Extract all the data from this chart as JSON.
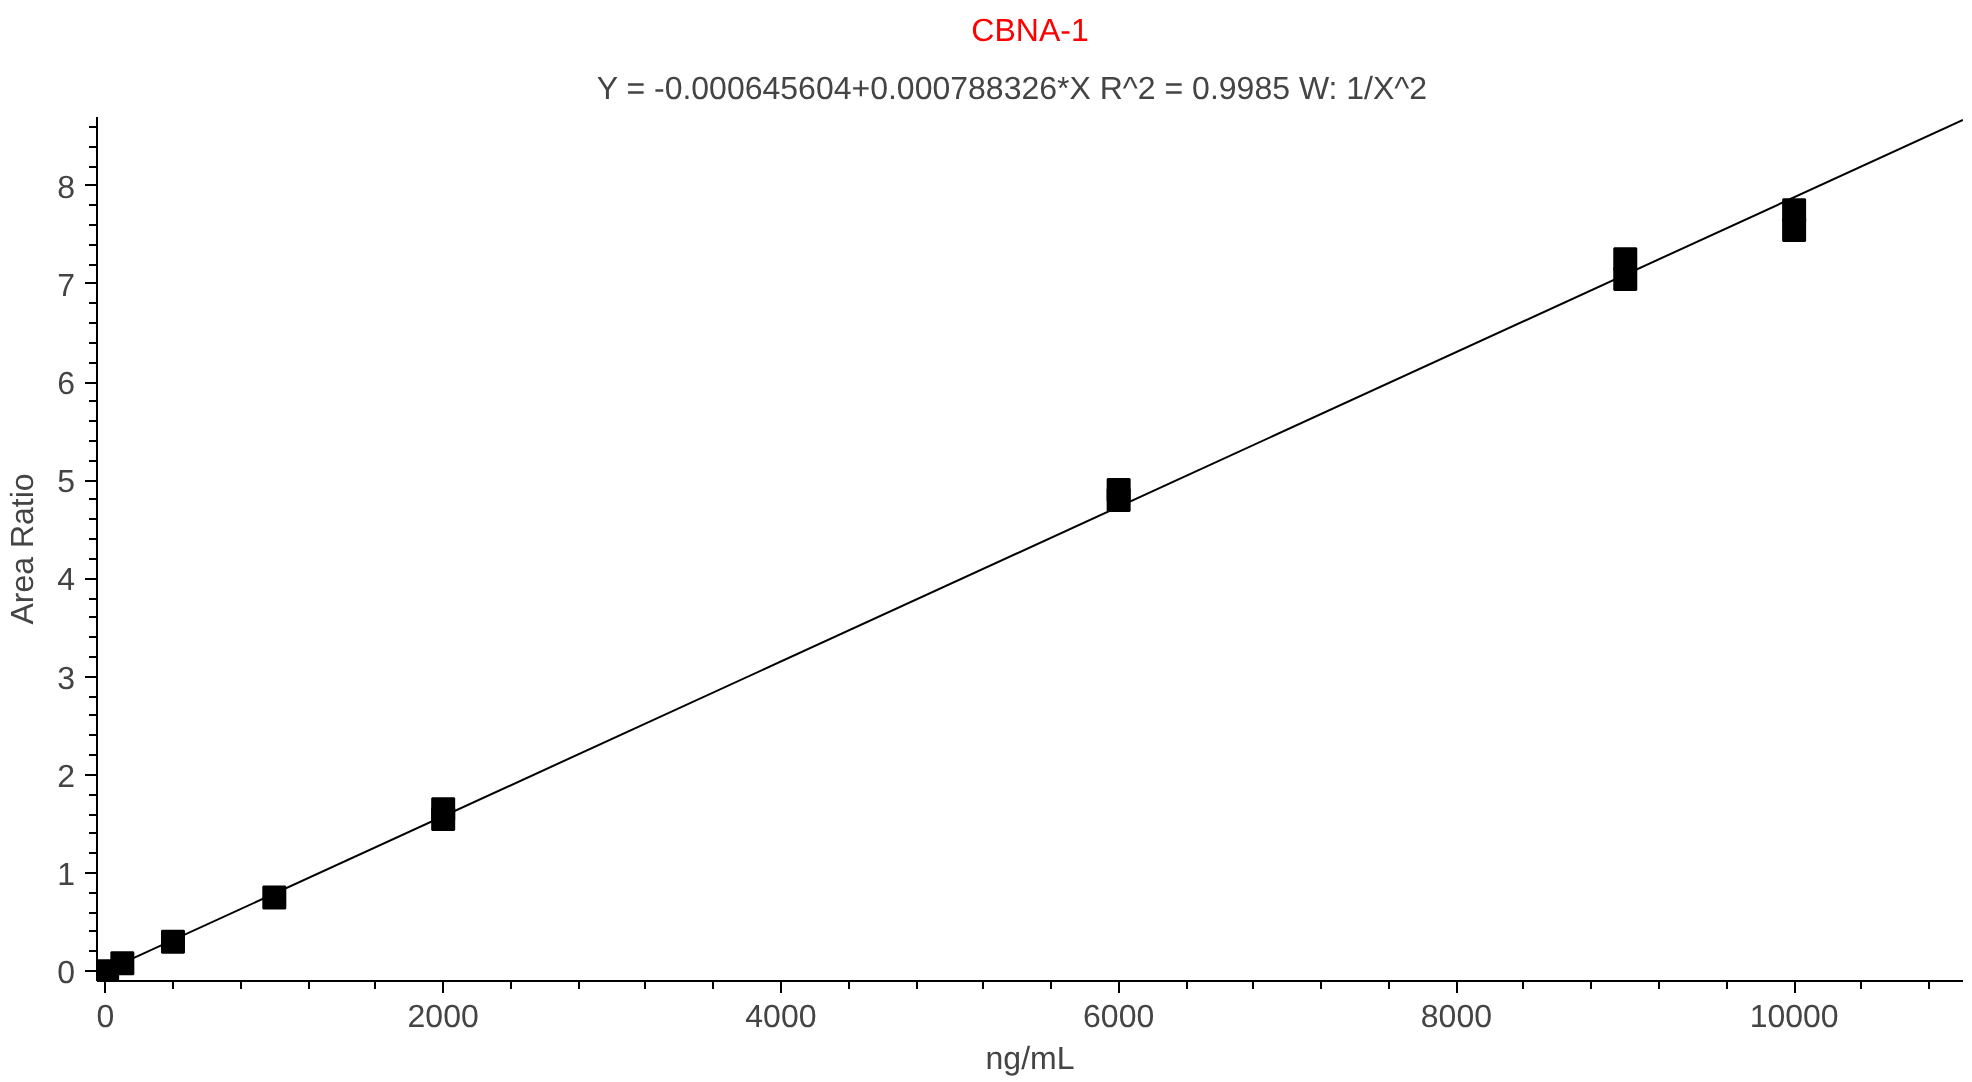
{
  "chart_data": {
    "type": "scatter",
    "title": "CBNA-1",
    "subtitle": "Y = -0.000645604+0.000788326*X   R^2 = 0.9985   W: 1/X^2",
    "xlabel": "ng/mL",
    "ylabel": "Area Ratio",
    "series": [
      {
        "color": "#000000",
        "marker": "square",
        "x": [
          10,
          100,
          400,
          1000,
          2000,
          2000,
          6000,
          6000,
          9000,
          9000,
          10000,
          10000
        ],
        "values": [
          0.0,
          0.08,
          0.3,
          0.75,
          1.55,
          1.65,
          4.8,
          4.9,
          7.05,
          7.25,
          7.55,
          7.75
        ]
      },
      {
        "type": "line",
        "color": "#000000",
        "line_style": "solid",
        "x": [
          10,
          11000
        ],
        "values": [
          0.01,
          8.67
        ]
      }
    ],
    "xlim": [
      -50,
      11000
    ],
    "ylim": [
      -0.1,
      8.7
    ],
    "xticks": [
      0,
      2000,
      4000,
      6000,
      8000,
      10000
    ],
    "yticks": [
      0,
      1,
      2,
      3,
      4,
      5,
      6,
      7,
      8
    ],
    "grid": false
  }
}
